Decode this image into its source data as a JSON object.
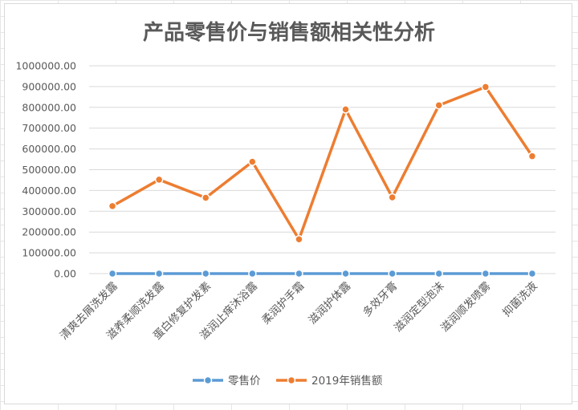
{
  "chart_data": {
    "type": "line",
    "title": "产品零售价与销售额相关性分析",
    "xlabel": "",
    "ylabel": "",
    "ylim": [
      0,
      1000000
    ],
    "y_tick_step": 100000,
    "y_tick_format": "0.00",
    "grid": true,
    "legend_position": "bottom",
    "categories": [
      "清爽去屑洗发露",
      "滋养柔顺洗发露",
      "蛋白修复护发素",
      "滋润止痒沐浴露",
      "柔润护手霜",
      "滋润护体露",
      "多效牙膏",
      "滋润定型泡沫",
      "滋润顺发喷雾",
      "抑菌洗液"
    ],
    "series": [
      {
        "name": "零售价",
        "color": "#5B9BD5",
        "values": [
          0,
          0,
          0,
          0,
          0,
          0,
          0,
          0,
          0,
          0
        ]
      },
      {
        "name": "2019年销售额",
        "color": "#ED7D31",
        "values": [
          325000,
          452000,
          365000,
          538000,
          165000,
          790000,
          367000,
          810000,
          898000,
          565000
        ]
      }
    ]
  }
}
